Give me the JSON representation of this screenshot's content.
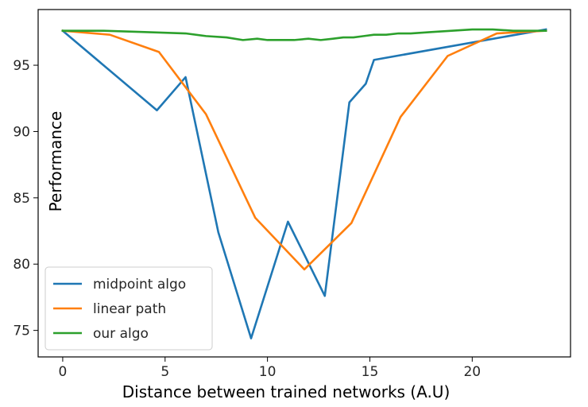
{
  "chart_data": {
    "type": "line",
    "title": "",
    "xlabel": "Distance between trained networks (A.U)",
    "ylabel": "Performance",
    "xlim": [
      -1.2,
      24.8
    ],
    "ylim": [
      73.0,
      99.2
    ],
    "xticks": [
      0,
      5,
      10,
      15,
      20
    ],
    "yticks": [
      75,
      80,
      85,
      90,
      95
    ],
    "grid": false,
    "legend_position": "lower-left",
    "series": [
      {
        "name": "midpoint algo",
        "color": "#1f77b4",
        "x": [
          0,
          4.6,
          6.0,
          7.6,
          9.2,
          11.0,
          12.8,
          14.0,
          14.8,
          15.2,
          23.6
        ],
        "y": [
          97.6,
          91.6,
          94.1,
          82.4,
          74.4,
          83.2,
          77.6,
          92.2,
          93.6,
          95.4,
          97.7
        ]
      },
      {
        "name": "linear path",
        "color": "#ff7f0e",
        "x": [
          0,
          2.3,
          4.7,
          7.0,
          9.4,
          11.8,
          14.1,
          16.5,
          18.8,
          21.2,
          23.6
        ],
        "y": [
          97.6,
          97.3,
          96.0,
          91.3,
          83.5,
          79.6,
          83.1,
          91.1,
          95.7,
          97.4,
          97.6
        ]
      },
      {
        "name": "our algo",
        "color": "#2ca02c",
        "x": [
          0,
          2.0,
          4.0,
          6.0,
          7.0,
          8.0,
          8.8,
          9.5,
          10.0,
          10.5,
          11.3,
          12.0,
          12.6,
          13.2,
          13.7,
          14.2,
          14.7,
          15.2,
          15.8,
          16.4,
          17.0,
          18.0,
          19.0,
          20.0,
          21.0,
          22.0,
          23.6
        ],
        "y": [
          97.6,
          97.6,
          97.5,
          97.4,
          97.2,
          97.1,
          96.9,
          97.0,
          96.9,
          96.9,
          96.9,
          97.0,
          96.9,
          97.0,
          97.1,
          97.1,
          97.2,
          97.3,
          97.3,
          97.4,
          97.4,
          97.5,
          97.6,
          97.7,
          97.7,
          97.6,
          97.6
        ]
      }
    ]
  }
}
